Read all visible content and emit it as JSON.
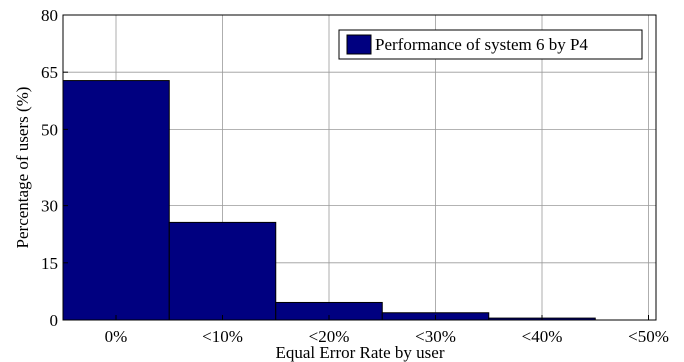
{
  "chart_data": {
    "type": "bar",
    "categories": [
      "0%",
      "<10%",
      "<20%",
      "<30%",
      "<40%",
      "<50%"
    ],
    "series": [
      {
        "name": "Performance of system 6 by P4",
        "values": [
          62.8,
          25.6,
          4.6,
          1.9,
          0.5,
          0
        ],
        "color": "#000080"
      }
    ],
    "xlabel": "Equal Error Rate by user",
    "ylabel": "Percentage of users (%)",
    "ylim": [
      0,
      80
    ],
    "yticks": [
      0,
      15,
      30,
      50,
      65,
      80
    ],
    "grid": true,
    "legend_position": "top-right"
  }
}
